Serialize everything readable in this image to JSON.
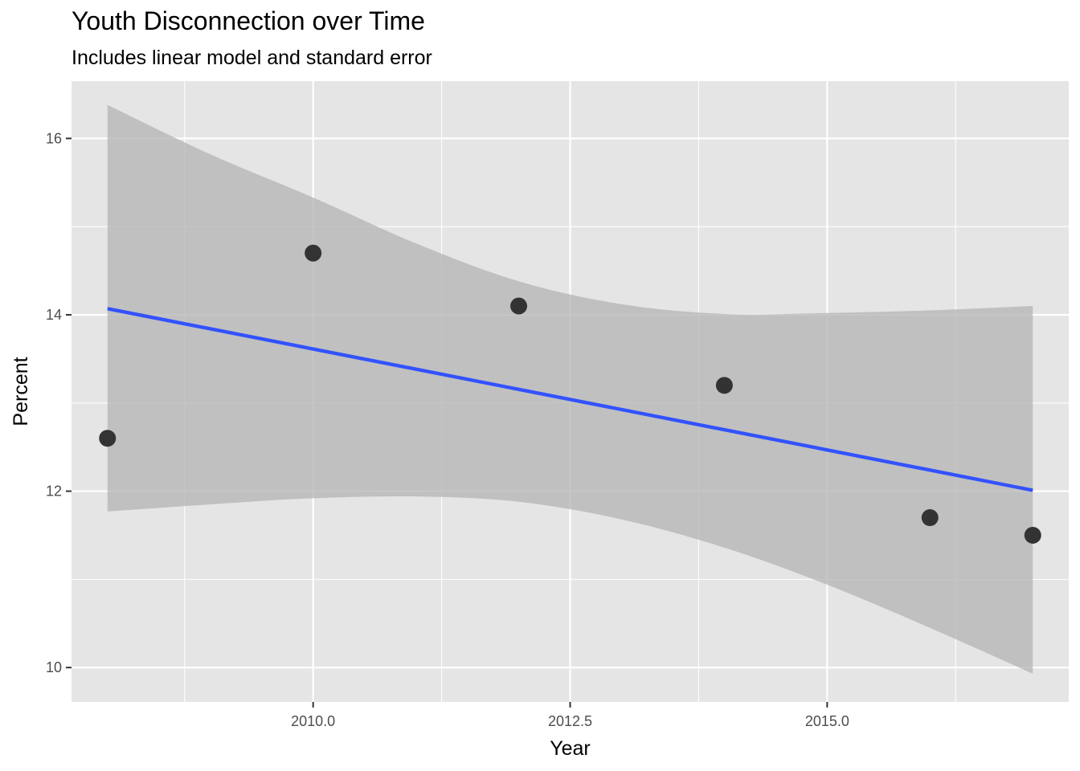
{
  "chart_data": {
    "type": "scatter",
    "title": "Youth Disconnection over Time",
    "subtitle": "Includes linear model and standard error",
    "xlabel": "Year",
    "ylabel": "Percent",
    "xlim": [
      2007.65,
      2017.35
    ],
    "ylim": [
      9.61,
      16.65
    ],
    "x_ticks": [
      2010.0,
      2012.5,
      2015.0
    ],
    "x_tick_labels": [
      "2010.0",
      "2012.5",
      "2015.0"
    ],
    "y_ticks": [
      10,
      12,
      14,
      16
    ],
    "y_tick_labels": [
      "10",
      "12",
      "14",
      "16"
    ],
    "grid": true,
    "points": [
      {
        "x": 2008,
        "y": 12.6
      },
      {
        "x": 2010,
        "y": 14.7
      },
      {
        "x": 2012,
        "y": 14.1
      },
      {
        "x": 2014,
        "y": 13.2
      },
      {
        "x": 2016,
        "y": 11.7
      },
      {
        "x": 2017,
        "y": 11.5
      }
    ],
    "fit_line": {
      "x": [
        2008,
        2017
      ],
      "y": [
        14.07,
        12.01
      ]
    },
    "ribbon": {
      "x": [
        2008,
        2009,
        2010,
        2011,
        2012,
        2013,
        2014,
        2015,
        2016,
        2017
      ],
      "upper": [
        16.38,
        15.82,
        15.33,
        14.81,
        14.38,
        14.12,
        14.01,
        14.02,
        14.05,
        14.1
      ],
      "lower": [
        11.77,
        11.85,
        11.92,
        11.94,
        11.88,
        11.68,
        11.36,
        10.94,
        10.45,
        9.93
      ]
    },
    "colors": {
      "panel_bg": "#e5e5e5",
      "grid": "#ffffff",
      "point": "#333333",
      "line": "#3352ff",
      "ribbon": "#b3b3b3"
    }
  }
}
